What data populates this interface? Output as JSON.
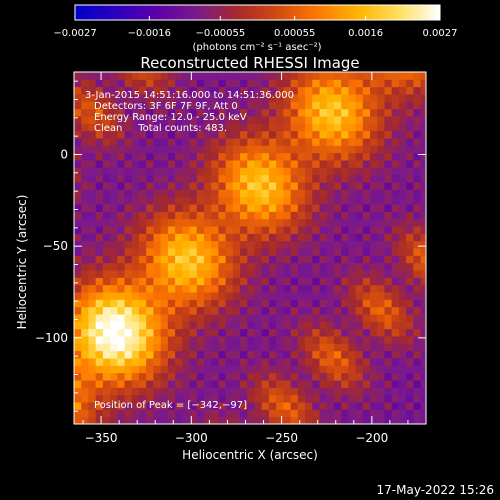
{
  "chart_data": {
    "type": "heatmap",
    "title": "Reconstructed RHESSI Image",
    "xlabel": "Heliocentric X (arcsec)",
    "ylabel": "Heliocentric Y (arcsec)",
    "xlim": [
      -365,
      -170
    ],
    "ylim": [
      -147,
      45
    ],
    "x_ticks": [
      -350,
      -300,
      -250,
      -200
    ],
    "x_tick_labels": [
      "−350",
      "−300",
      "−250",
      "−200"
    ],
    "y_ticks": [
      0,
      -50,
      -100
    ],
    "y_tick_labels": [
      "0",
      "−50",
      "−100"
    ],
    "colorbar": {
      "min": -0.0027,
      "max": 0.0027,
      "ticks": [
        -0.0027,
        -0.0016,
        -0.00055,
        0.00055,
        0.0016,
        0.0027
      ],
      "tick_labels": [
        "−0.0027",
        "−0.0016",
        "−0.00055",
        "0.00055",
        "0.0016",
        "0.0027"
      ],
      "unit_label": "(photons cm⁻² s⁻¹ asec⁻²)",
      "colors": [
        "#0000c8",
        "#2b00c0",
        "#5a00a8",
        "#7a1a8c",
        "#a52a2a",
        "#d24a10",
        "#ff7a00",
        "#ffb400",
        "#ffe060",
        "#ffffff"
      ]
    },
    "annotations": [
      "3-Jan-2015 14:51:16.000 to 14:51:36.000",
      "Detectors: 3F 6F 7F 9F, Att 0",
      "Energy Range: 12.0 - 25.0 keV",
      "Clean     Total counts: 483."
    ],
    "peak_label": "Position of Peak = [−342,−97]",
    "peak": {
      "x": -342,
      "y": -97
    },
    "grid": false
  },
  "footer": {
    "timestamp": "17-May-2022 15:26"
  }
}
